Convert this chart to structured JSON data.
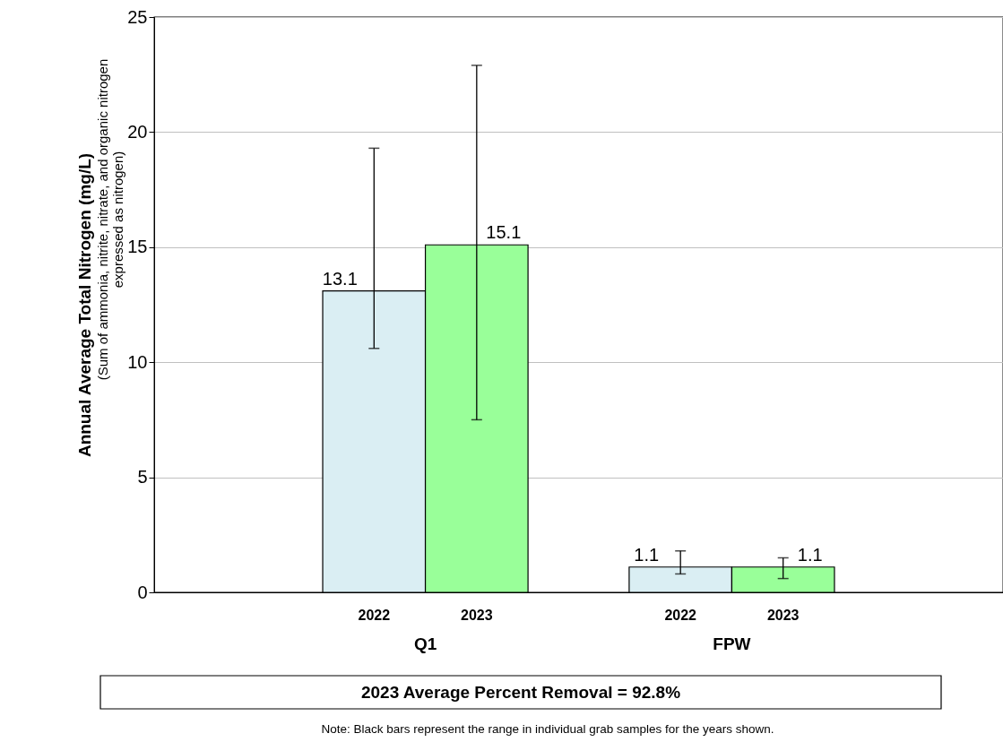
{
  "chart_data": {
    "type": "bar",
    "ylabel": "Annual Average Total Nitrogen (mg/L)",
    "categories": [
      "Q1",
      "FPW"
    ],
    "series": [
      {
        "name": "2022",
        "color": "#daeef3",
        "values": [
          13.1,
          1.1
        ],
        "errors": [
          [
            10.6,
            19.3
          ],
          [
            0.8,
            1.8
          ]
        ]
      },
      {
        "name": "2023",
        "color": "#99ff99",
        "values": [
          15.1,
          1.1
        ],
        "errors": [
          [
            7.5,
            22.9
          ],
          [
            0.6,
            1.5
          ]
        ]
      }
    ],
    "ylim": [
      0,
      25
    ],
    "yticks": [
      0,
      5,
      10,
      15,
      20,
      25
    ],
    "grid": "y",
    "data_labels": true,
    "annotations": [
      "(Sum of ammonia, nitrite, nitrate, and organic nitrogen expressed as nitrogen)",
      "2023 Average Percent Removal = 92.8%",
      "Note:  Black bars represent the range in individual grab samples for the years shown."
    ]
  }
}
